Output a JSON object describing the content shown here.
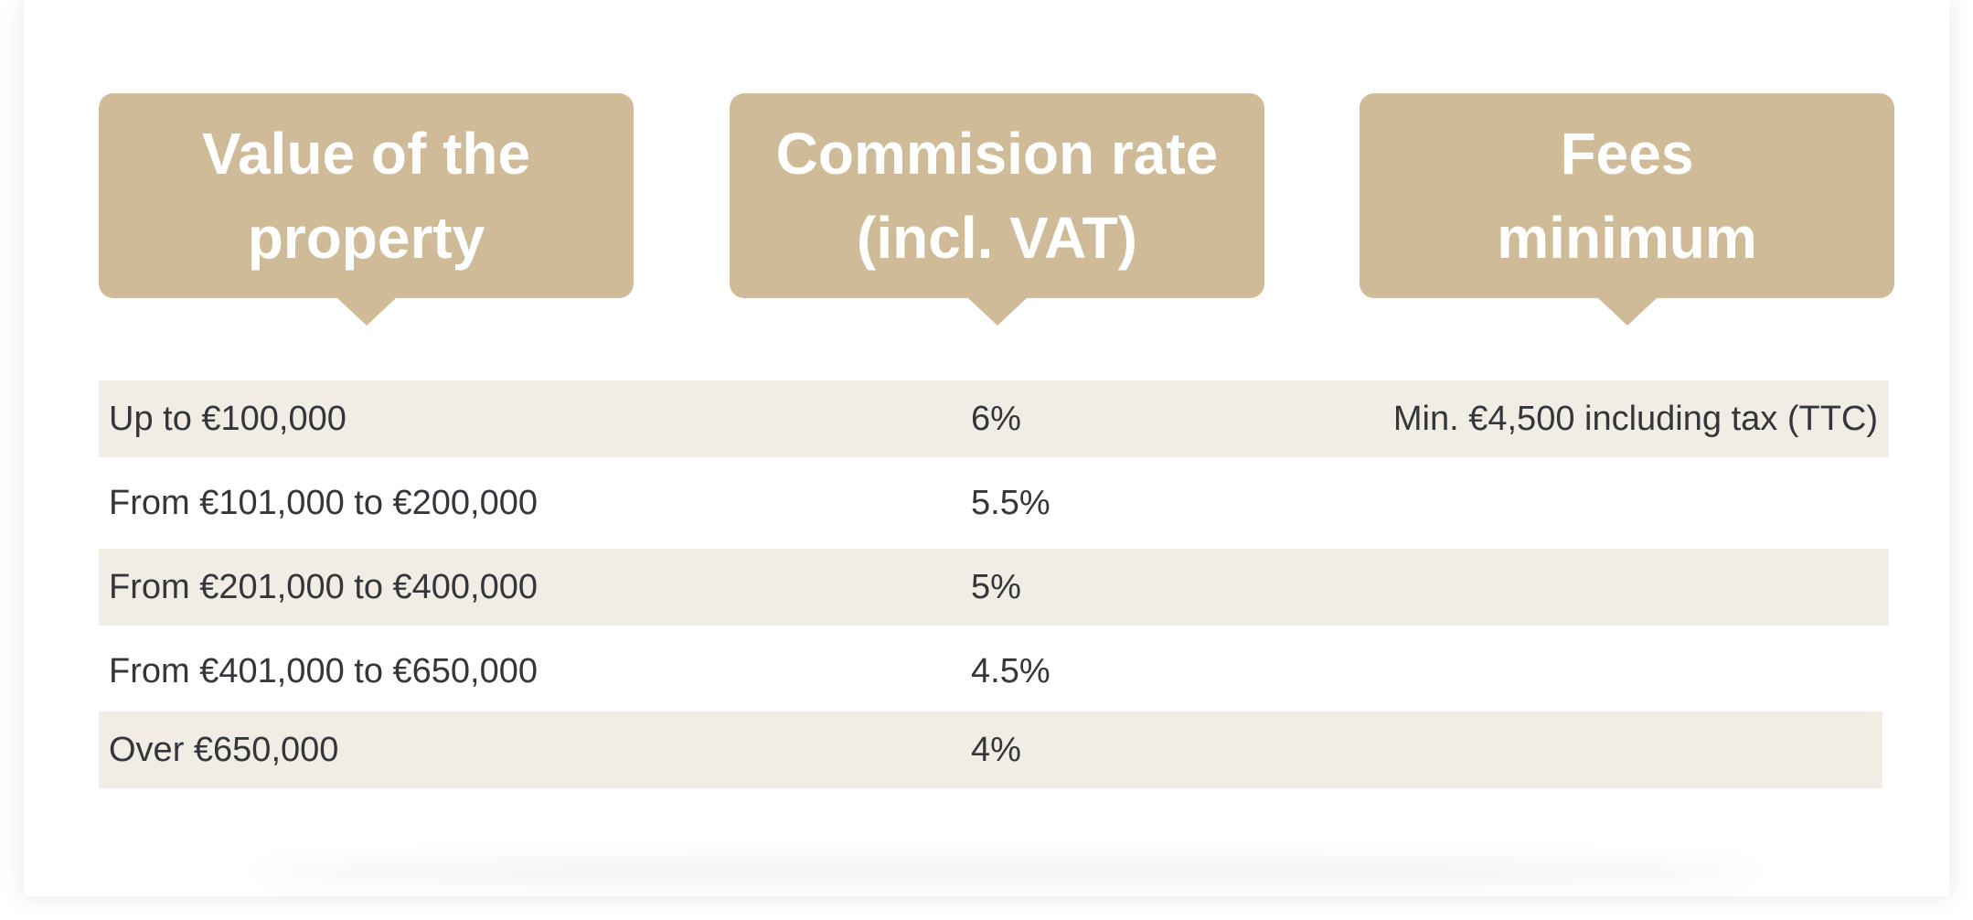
{
  "headers": {
    "value": "Value of the\nproperty",
    "rate": "Commision rate\n(incl. VAT)",
    "fees": "Fees\nminimum"
  },
  "rows": [
    {
      "value": "Up to €100,000",
      "rate": "6%",
      "fees": "Min. €4,500 including tax (TTC)"
    },
    {
      "value": "From €101,000 to €200,000",
      "rate": "5.5%",
      "fees": ""
    },
    {
      "value": "From €201,000 to €400,000",
      "rate": "5%",
      "fees": ""
    },
    {
      "value": "From €401,000 to €650,000",
      "rate": "4.5%",
      "fees": ""
    },
    {
      "value": "Over €650,000",
      "rate": "4%",
      "fees": ""
    }
  ],
  "colors": {
    "header_bg": "#d0bb98",
    "row_shade": "#f1ece4",
    "text": "#33363b"
  }
}
